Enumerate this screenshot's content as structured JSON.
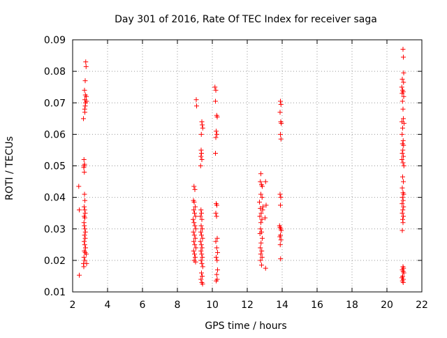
{
  "chart_data": {
    "type": "scatter",
    "title": "Day 301 of 2016, Rate Of TEC Index for receiver saga",
    "xlabel": "GPS time / hours",
    "ylabel": "ROTI / TECUs",
    "xlim": [
      2,
      22
    ],
    "ylim": [
      0.01,
      0.09
    ],
    "grid": true,
    "marker": "plus",
    "color": "#ff0000",
    "x_ticks": [
      "2",
      "4",
      "6",
      "8",
      "10",
      "12",
      "14",
      "16",
      "18",
      "20",
      "22"
    ],
    "y_ticks": [
      "0.01",
      "0.02",
      "0.03",
      "0.04",
      "0.05",
      "0.06",
      "0.07",
      "0.08",
      "0.09"
    ],
    "series": [
      {
        "name": "ROTI",
        "points": [
          [
            2.35,
            0.0435
          ],
          [
            2.38,
            0.036
          ],
          [
            2.38,
            0.0153
          ],
          [
            2.62,
            0.065
          ],
          [
            2.65,
            0.052
          ],
          [
            2.66,
            0.05
          ],
          [
            2.67,
            0.048
          ],
          [
            2.68,
            0.0505
          ],
          [
            2.64,
            0.0495
          ],
          [
            2.68,
            0.041
          ],
          [
            2.7,
            0.039
          ],
          [
            2.66,
            0.037
          ],
          [
            2.69,
            0.036
          ],
          [
            2.72,
            0.035
          ],
          [
            2.66,
            0.034
          ],
          [
            2.7,
            0.0335
          ],
          [
            2.65,
            0.032
          ],
          [
            2.67,
            0.031
          ],
          [
            2.7,
            0.03
          ],
          [
            2.73,
            0.029
          ],
          [
            2.68,
            0.028
          ],
          [
            2.72,
            0.027
          ],
          [
            2.66,
            0.026
          ],
          [
            2.69,
            0.025
          ],
          [
            2.74,
            0.024
          ],
          [
            2.67,
            0.023
          ],
          [
            2.72,
            0.0225
          ],
          [
            2.78,
            0.022
          ],
          [
            2.65,
            0.021
          ],
          [
            2.7,
            0.02
          ],
          [
            2.62,
            0.019
          ],
          [
            2.8,
            0.019
          ],
          [
            2.64,
            0.018
          ],
          [
            2.75,
            0.083
          ],
          [
            2.77,
            0.0815
          ],
          [
            2.72,
            0.077
          ],
          [
            2.68,
            0.074
          ],
          [
            2.73,
            0.0725
          ],
          [
            2.78,
            0.072
          ],
          [
            2.7,
            0.071
          ],
          [
            2.74,
            0.07
          ],
          [
            2.8,
            0.0705
          ],
          [
            2.72,
            0.069
          ],
          [
            2.69,
            0.068
          ],
          [
            2.7,
            0.067
          ],
          [
            8.95,
            0.0435
          ],
          [
            9.0,
            0.0425
          ],
          [
            8.92,
            0.039
          ],
          [
            8.96,
            0.0385
          ],
          [
            9.02,
            0.037
          ],
          [
            8.94,
            0.036
          ],
          [
            8.98,
            0.035
          ],
          [
            9.04,
            0.034
          ],
          [
            8.9,
            0.033
          ],
          [
            8.95,
            0.032
          ],
          [
            9.0,
            0.031
          ],
          [
            9.05,
            0.03
          ],
          [
            8.92,
            0.029
          ],
          [
            8.97,
            0.028
          ],
          [
            9.03,
            0.027
          ],
          [
            8.94,
            0.026
          ],
          [
            8.99,
            0.025
          ],
          [
            9.06,
            0.024
          ],
          [
            8.93,
            0.023
          ],
          [
            8.98,
            0.022
          ],
          [
            9.02,
            0.021
          ],
          [
            8.96,
            0.02
          ],
          [
            9.04,
            0.0195
          ],
          [
            9.08,
            0.071
          ],
          [
            9.1,
            0.069
          ],
          [
            9.4,
            0.064
          ],
          [
            9.42,
            0.063
          ],
          [
            9.45,
            0.062
          ],
          [
            9.37,
            0.06
          ],
          [
            9.36,
            0.055
          ],
          [
            9.38,
            0.054
          ],
          [
            9.35,
            0.053
          ],
          [
            9.4,
            0.052
          ],
          [
            9.33,
            0.05
          ],
          [
            9.35,
            0.036
          ],
          [
            9.38,
            0.035
          ],
          [
            9.32,
            0.034
          ],
          [
            9.4,
            0.033
          ],
          [
            9.36,
            0.031
          ],
          [
            9.42,
            0.03
          ],
          [
            9.34,
            0.029
          ],
          [
            9.38,
            0.028
          ],
          [
            9.44,
            0.027
          ],
          [
            9.32,
            0.026
          ],
          [
            9.37,
            0.025
          ],
          [
            9.41,
            0.024
          ],
          [
            9.35,
            0.023
          ],
          [
            9.39,
            0.022
          ],
          [
            9.43,
            0.021
          ],
          [
            9.36,
            0.02
          ],
          [
            9.4,
            0.019
          ],
          [
            9.45,
            0.018
          ],
          [
            9.38,
            0.016
          ],
          [
            9.42,
            0.015
          ],
          [
            9.35,
            0.014
          ],
          [
            9.4,
            0.013
          ],
          [
            9.44,
            0.0125
          ],
          [
            10.15,
            0.075
          ],
          [
            10.2,
            0.074
          ],
          [
            10.18,
            0.0705
          ],
          [
            10.25,
            0.066
          ],
          [
            10.28,
            0.0655
          ],
          [
            10.22,
            0.061
          ],
          [
            10.26,
            0.06
          ],
          [
            10.2,
            0.059
          ],
          [
            10.18,
            0.054
          ],
          [
            10.22,
            0.038
          ],
          [
            10.26,
            0.0375
          ],
          [
            10.2,
            0.035
          ],
          [
            10.24,
            0.034
          ],
          [
            10.28,
            0.027
          ],
          [
            10.2,
            0.026
          ],
          [
            10.25,
            0.024
          ],
          [
            10.3,
            0.0225
          ],
          [
            10.22,
            0.021
          ],
          [
            10.27,
            0.02
          ],
          [
            10.3,
            0.017
          ],
          [
            10.25,
            0.0155
          ],
          [
            10.28,
            0.014
          ],
          [
            10.22,
            0.0135
          ],
          [
            12.78,
            0.0475
          ],
          [
            12.75,
            0.045
          ],
          [
            12.82,
            0.044
          ],
          [
            12.86,
            0.0435
          ],
          [
            12.78,
            0.041
          ],
          [
            12.85,
            0.04
          ],
          [
            12.7,
            0.0385
          ],
          [
            12.9,
            0.037
          ],
          [
            12.75,
            0.0365
          ],
          [
            12.88,
            0.036
          ],
          [
            12.8,
            0.035
          ],
          [
            12.72,
            0.034
          ],
          [
            12.84,
            0.033
          ],
          [
            12.78,
            0.032
          ],
          [
            12.76,
            0.03
          ],
          [
            12.82,
            0.029
          ],
          [
            12.73,
            0.0285
          ],
          [
            12.86,
            0.027
          ],
          [
            12.79,
            0.0255
          ],
          [
            12.75,
            0.024
          ],
          [
            12.83,
            0.023
          ],
          [
            12.77,
            0.022
          ],
          [
            12.85,
            0.021
          ],
          [
            12.76,
            0.02
          ],
          [
            12.82,
            0.0185
          ],
          [
            13.05,
            0.045
          ],
          [
            13.08,
            0.0375
          ],
          [
            13.02,
            0.0335
          ],
          [
            13.05,
            0.0175
          ],
          [
            13.9,
            0.0705
          ],
          [
            13.93,
            0.0695
          ],
          [
            13.88,
            0.067
          ],
          [
            13.92,
            0.064
          ],
          [
            13.95,
            0.0635
          ],
          [
            13.9,
            0.06
          ],
          [
            13.93,
            0.0585
          ],
          [
            13.88,
            0.041
          ],
          [
            13.92,
            0.04
          ],
          [
            13.9,
            0.0375
          ],
          [
            13.85,
            0.031
          ],
          [
            13.88,
            0.0305
          ],
          [
            13.92,
            0.03
          ],
          [
            13.95,
            0.0295
          ],
          [
            13.9,
            0.028
          ],
          [
            13.87,
            0.0275
          ],
          [
            13.93,
            0.0265
          ],
          [
            13.89,
            0.025
          ],
          [
            13.91,
            0.0205
          ],
          [
            20.92,
            0.087
          ],
          [
            20.94,
            0.0845
          ],
          [
            20.96,
            0.0795
          ],
          [
            20.88,
            0.0775
          ],
          [
            20.95,
            0.0765
          ],
          [
            20.85,
            0.075
          ],
          [
            20.9,
            0.074
          ],
          [
            20.93,
            0.0735
          ],
          [
            20.87,
            0.073
          ],
          [
            20.96,
            0.072
          ],
          [
            20.89,
            0.0705
          ],
          [
            20.92,
            0.068
          ],
          [
            20.94,
            0.065
          ],
          [
            20.86,
            0.064
          ],
          [
            20.98,
            0.0635
          ],
          [
            20.9,
            0.062
          ],
          [
            20.87,
            0.06
          ],
          [
            20.93,
            0.058
          ],
          [
            20.89,
            0.057
          ],
          [
            20.95,
            0.0565
          ],
          [
            20.91,
            0.055
          ],
          [
            20.88,
            0.054
          ],
          [
            20.94,
            0.053
          ],
          [
            20.86,
            0.052
          ],
          [
            20.92,
            0.051
          ],
          [
            20.97,
            0.05
          ],
          [
            20.9,
            0.0465
          ],
          [
            20.94,
            0.045
          ],
          [
            20.88,
            0.043
          ],
          [
            20.92,
            0.0415
          ],
          [
            20.96,
            0.041
          ],
          [
            20.89,
            0.04
          ],
          [
            20.93,
            0.039
          ],
          [
            20.87,
            0.038
          ],
          [
            20.95,
            0.037
          ],
          [
            20.91,
            0.036
          ],
          [
            20.88,
            0.035
          ],
          [
            20.94,
            0.034
          ],
          [
            20.9,
            0.033
          ],
          [
            20.92,
            0.032
          ],
          [
            20.88,
            0.0295
          ],
          [
            20.92,
            0.018
          ],
          [
            20.95,
            0.0175
          ],
          [
            20.88,
            0.017
          ],
          [
            20.93,
            0.0165
          ],
          [
            20.97,
            0.016
          ],
          [
            20.9,
            0.015
          ],
          [
            20.86,
            0.0145
          ],
          [
            20.94,
            0.014
          ],
          [
            20.89,
            0.0135
          ],
          [
            20.93,
            0.013
          ]
        ]
      }
    ]
  }
}
